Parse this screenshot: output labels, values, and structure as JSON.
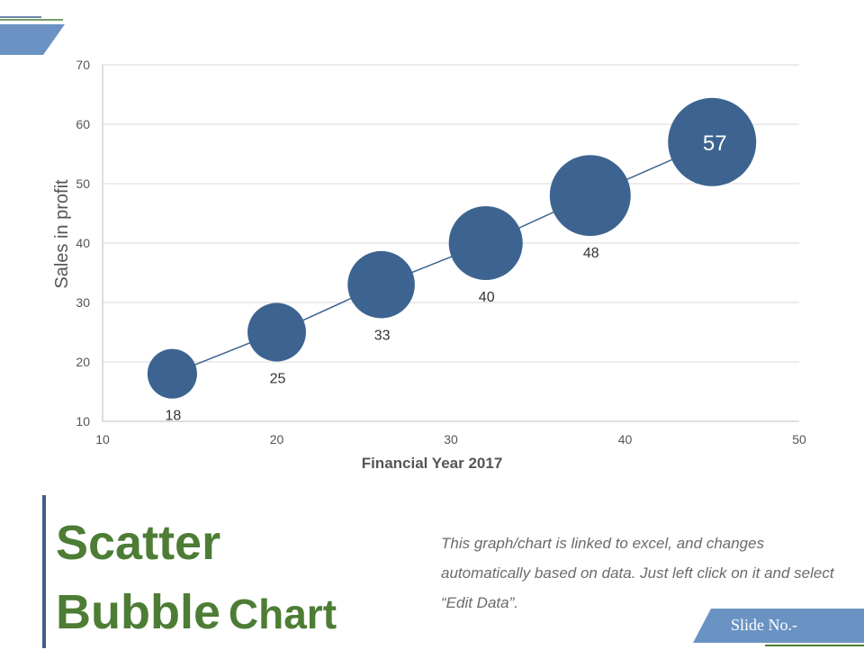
{
  "chart_data": {
    "type": "scatter",
    "subtype": "bubble",
    "title": "",
    "xlabel": "Financial Year 2017",
    "ylabel": "Sales in profit",
    "xlim": [
      10,
      50
    ],
    "ylim": [
      10,
      70
    ],
    "x_ticks": [
      10,
      20,
      30,
      40,
      50
    ],
    "y_ticks": [
      10,
      20,
      30,
      40,
      50,
      60,
      70
    ],
    "grid": "horizontal",
    "trendline": true,
    "color": "#3d6490",
    "points": [
      {
        "x": 14,
        "y": 18,
        "size": 18,
        "label": "18"
      },
      {
        "x": 20,
        "y": 25,
        "size": 25,
        "label": "25"
      },
      {
        "x": 26,
        "y": 33,
        "size": 33,
        "label": "33"
      },
      {
        "x": 32,
        "y": 40,
        "size": 40,
        "label": "40"
      },
      {
        "x": 38,
        "y": 48,
        "size": 48,
        "label": "48"
      },
      {
        "x": 45,
        "y": 57,
        "size": 57,
        "label": "57"
      }
    ]
  },
  "slide": {
    "title_word1": "Scatter",
    "title_word2": "Bubble",
    "title_word3": "Chart",
    "description": "This graph/chart is linked to excel, and changes automatically based on data. Just left click on it and select “Edit Data”.",
    "slide_no": "Slide No.-",
    "colors": {
      "accent_blue": "#6a93c4",
      "dark_blue": "#3e5f86",
      "green": "#4d7d35"
    }
  }
}
